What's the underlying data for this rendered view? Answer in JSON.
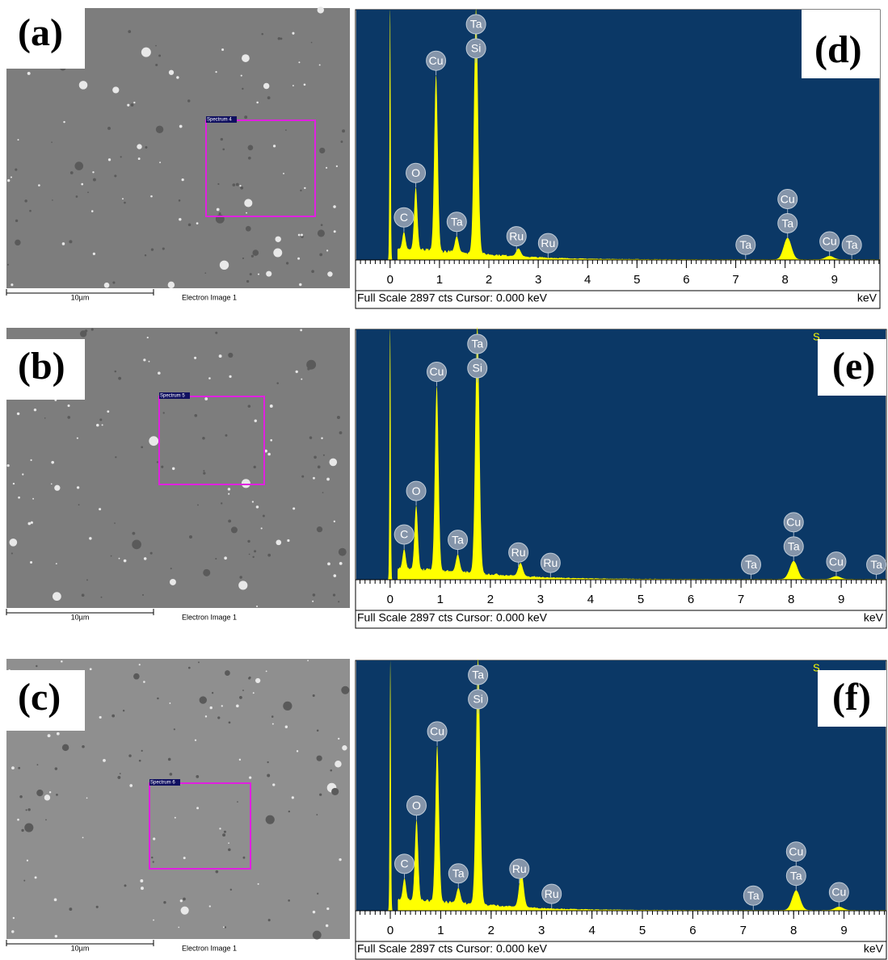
{
  "panels": [
    {
      "image": {
        "label": "(a)",
        "spectrum_box": "Spectrum 4",
        "scale_bar": "10µm",
        "caption": "Electron Image 1"
      },
      "spectrum": {
        "label": "(d)",
        "xlim": [
          -0.7,
          9.92
        ],
        "xticks": [
          0,
          1,
          2,
          3,
          4,
          5,
          6,
          7,
          8,
          9
        ],
        "full_scale": 2897,
        "peaks": [
          {
            "energy": 0,
            "counts": 2897
          },
          {
            "energy": 0.28,
            "counts": 200
          },
          {
            "energy": 0.52,
            "counts": 720
          },
          {
            "energy": 0.93,
            "counts": 2030
          },
          {
            "energy": 1.35,
            "counts": 180
          },
          {
            "energy": 1.74,
            "counts": 2830
          },
          {
            "energy": 2.6,
            "counts": 90
          },
          {
            "energy": 8.05,
            "counts": 250
          },
          {
            "energy": 8.9,
            "counts": 40
          }
        ],
        "peak_labels": [
          {
            "text": "C",
            "energy": 0.28
          },
          {
            "text": "O",
            "energy": 0.52
          },
          {
            "text": "Cu",
            "energy": 0.93
          },
          {
            "text": "Ta",
            "energy": 1.35
          },
          {
            "text": "Ta",
            "energy": 1.74
          },
          {
            "text": "Si",
            "energy": 1.74
          },
          {
            "text": "Ru",
            "energy": 2.56
          },
          {
            "text": "Ru",
            "energy": 3.2
          },
          {
            "text": "Ta",
            "energy": 7.2
          },
          {
            "text": "Cu",
            "energy": 8.05
          },
          {
            "text": "Ta",
            "energy": 8.05
          },
          {
            "text": "Cu",
            "energy": 8.9
          },
          {
            "text": "Ta",
            "energy": 9.35
          }
        ],
        "footer": "Full Scale 2897 cts  Cursor: 0.000 keV",
        "unit": "keV"
      }
    },
    {
      "image": {
        "label": "(b)",
        "spectrum_box": "Spectrum 5",
        "scale_bar": "10µm",
        "caption": "Electron Image 1"
      },
      "spectrum": {
        "label": "(e)",
        "corner_text": "S",
        "xlim": [
          -0.69,
          9.9
        ],
        "xticks": [
          0,
          1,
          2,
          3,
          4,
          5,
          6,
          7,
          8,
          9
        ],
        "full_scale": 2897,
        "peaks": [
          {
            "energy": 0,
            "counts": 2897
          },
          {
            "energy": 0.28,
            "counts": 230
          },
          {
            "energy": 0.52,
            "counts": 740
          },
          {
            "energy": 0.93,
            "counts": 2130
          },
          {
            "energy": 1.35,
            "counts": 200
          },
          {
            "energy": 1.74,
            "counts": 2850
          },
          {
            "energy": 2.6,
            "counts": 150
          },
          {
            "energy": 8.05,
            "counts": 210
          },
          {
            "energy": 8.9,
            "counts": 35
          }
        ],
        "peak_labels": [
          {
            "text": "C",
            "energy": 0.28
          },
          {
            "text": "O",
            "energy": 0.52
          },
          {
            "text": "Cu",
            "energy": 0.93
          },
          {
            "text": "Ta",
            "energy": 1.35
          },
          {
            "text": "Ta",
            "energy": 1.74
          },
          {
            "text": "Si",
            "energy": 1.74
          },
          {
            "text": "Ru",
            "energy": 2.56
          },
          {
            "text": "Ru",
            "energy": 3.2
          },
          {
            "text": "Ta",
            "energy": 7.2
          },
          {
            "text": "Cu",
            "energy": 8.05
          },
          {
            "text": "Ta",
            "energy": 8.05
          },
          {
            "text": "Cu",
            "energy": 8.9
          },
          {
            "text": "Ta",
            "energy": 9.7
          }
        ],
        "footer": "Full Scale 2897 cts  Cursor: 0.000 keV",
        "unit": "keV"
      }
    },
    {
      "image": {
        "label": "(c)",
        "spectrum_box": "Spectrum 6",
        "scale_bar": "10µm",
        "caption": "Electron Image 1"
      },
      "spectrum": {
        "label": "(f)",
        "corner_text": "S",
        "xlim": [
          -0.69,
          9.84
        ],
        "xticks": [
          0,
          1,
          2,
          3,
          4,
          5,
          6,
          7,
          8,
          9
        ],
        "full_scale": 2897,
        "peaks": [
          {
            "energy": 0,
            "counts": 2897
          },
          {
            "energy": 0.28,
            "counts": 250
          },
          {
            "energy": 0.52,
            "counts": 930
          },
          {
            "energy": 0.93,
            "counts": 1800
          },
          {
            "energy": 1.35,
            "counts": 170
          },
          {
            "energy": 1.74,
            "counts": 2840
          },
          {
            "energy": 2.6,
            "counts": 400
          },
          {
            "energy": 8.05,
            "counts": 230
          },
          {
            "energy": 8.9,
            "counts": 40
          }
        ],
        "peak_labels": [
          {
            "text": "C",
            "energy": 0.28
          },
          {
            "text": "O",
            "energy": 0.52
          },
          {
            "text": "Cu",
            "energy": 0.93
          },
          {
            "text": "Ta",
            "energy": 1.35
          },
          {
            "text": "Ta",
            "energy": 1.74
          },
          {
            "text": "Si",
            "energy": 1.74
          },
          {
            "text": "Ru",
            "energy": 2.56
          },
          {
            "text": "Ru",
            "energy": 3.2
          },
          {
            "text": "Ta",
            "energy": 7.2
          },
          {
            "text": "Cu",
            "energy": 8.05
          },
          {
            "text": "Ta",
            "energy": 8.05
          },
          {
            "text": "Cu",
            "energy": 8.9
          }
        ],
        "footer": "Full Scale 2897 cts  Cursor: 0.000 keV",
        "unit": "keV"
      }
    }
  ]
}
